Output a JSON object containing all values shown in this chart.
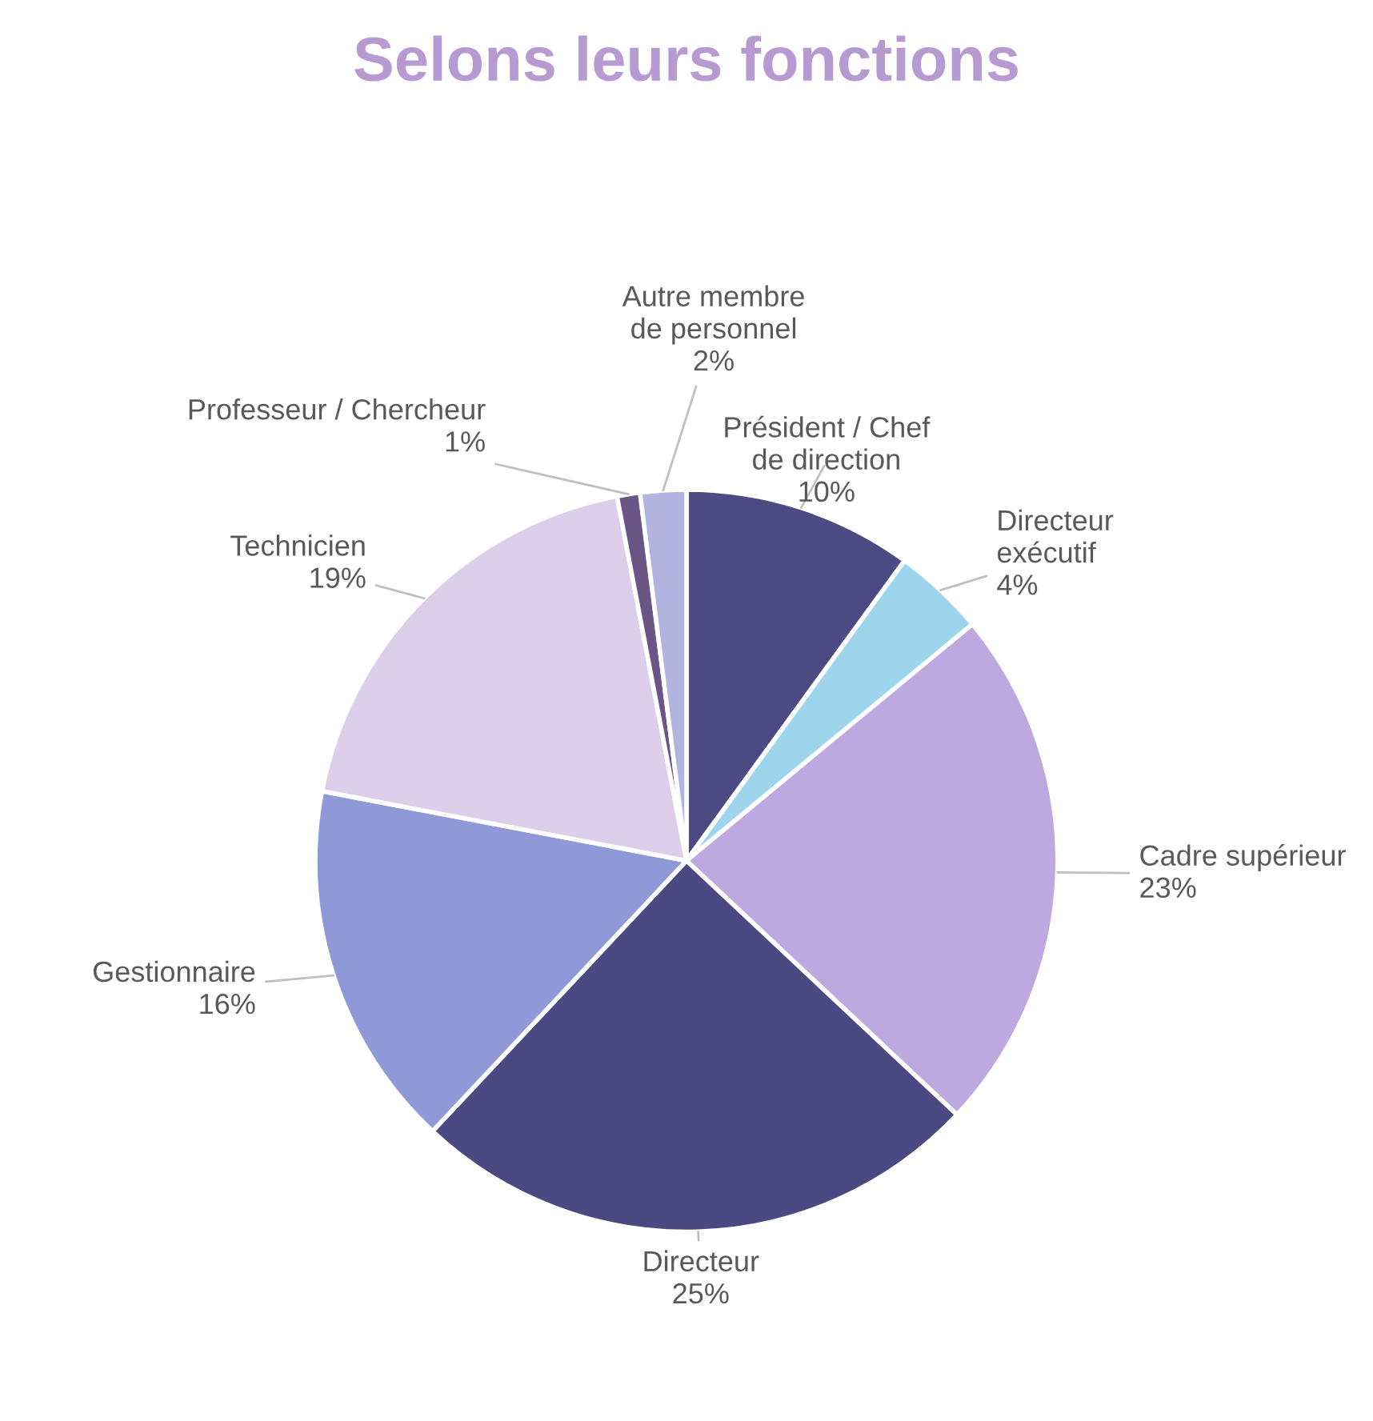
{
  "chart_data": {
    "type": "pie",
    "title": "Selons leurs fonctions",
    "categories": [
      "Président / Chef\nde direction",
      "Directeur\nexécutif",
      "Cadre supérieur",
      "Directeur",
      "Gestionnaire",
      "Technicien",
      "Professeur / Chercheur",
      "Autre membre\nde personnel"
    ],
    "values": [
      10,
      4,
      23,
      25,
      16,
      19,
      1,
      2
    ],
    "value_labels": [
      "10%",
      "4%",
      "23%",
      "25%",
      "16%",
      "19%",
      "1%",
      "2%"
    ],
    "colors": [
      "#4b4a82",
      "#9dd5ec",
      "#bea8e0",
      "#4a4a82",
      "#9099d8",
      "#dccfea",
      "#6b5585",
      "#b2b4e0"
    ]
  }
}
